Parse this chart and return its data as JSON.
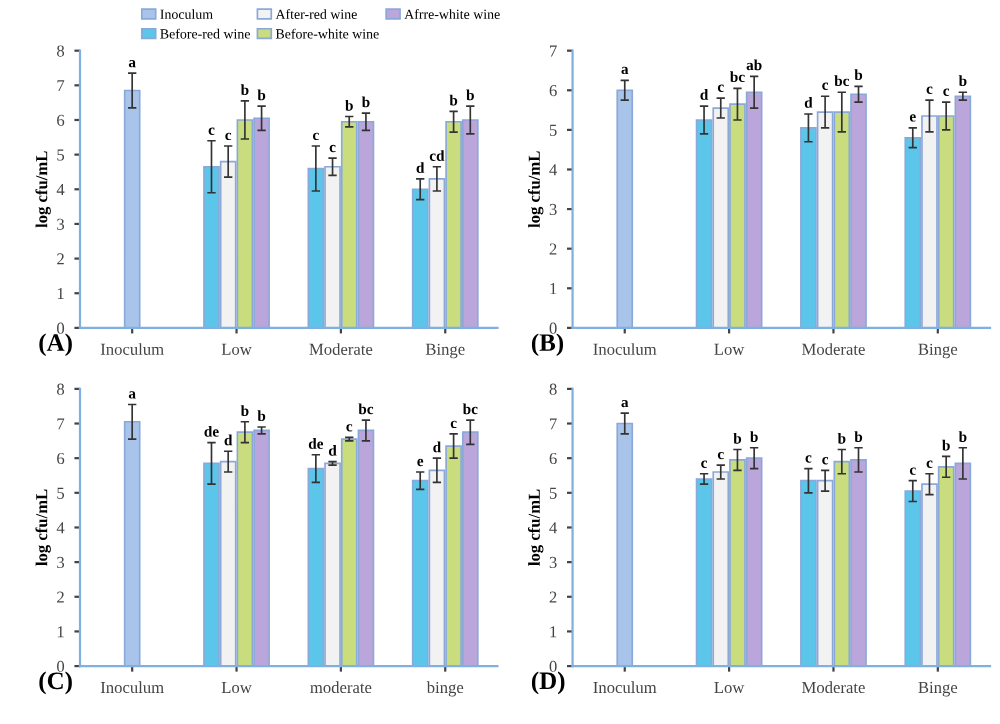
{
  "chart_data": [
    {
      "type": "bar",
      "title": "(A)",
      "ylabel": "log cfu/mL",
      "categories": [
        "Inoculum",
        "Low",
        "Moderate",
        "Binge"
      ],
      "ylim": [
        0,
        8
      ],
      "yticks": [
        0,
        1,
        2,
        3,
        4,
        5,
        6,
        7,
        8
      ],
      "legend": "top right",
      "grid": false,
      "series": [
        {
          "name": "Inoculum",
          "color": "#a9c4ea",
          "values": [
            6.85,
            null,
            null,
            null
          ],
          "errors": [
            0.5,
            null,
            null,
            null
          ],
          "value_labels": [
            "a",
            null,
            null,
            null
          ]
        },
        {
          "name": "Before-red wine",
          "color": "#5cc6ea",
          "values": [
            null,
            4.65,
            4.6,
            4.0
          ],
          "errors": [
            null,
            0.75,
            0.65,
            0.3
          ],
          "value_labels": [
            null,
            "c",
            "c",
            "d"
          ]
        },
        {
          "name": "After-red wine",
          "color": "#f2f2f2",
          "values": [
            null,
            4.8,
            4.65,
            4.3
          ],
          "errors": [
            null,
            0.45,
            0.25,
            0.35
          ],
          "value_labels": [
            null,
            "c",
            "c",
            "cd"
          ]
        },
        {
          "name": "Before-white wine",
          "color": "#c9dc7e",
          "values": [
            null,
            6.0,
            5.95,
            5.95
          ],
          "errors": [
            null,
            0.55,
            0.15,
            0.3
          ],
          "value_labels": [
            null,
            "b",
            "b",
            "b"
          ]
        },
        {
          "name": "Afrre-white wine",
          "color": "#baa6da",
          "values": [
            null,
            6.05,
            5.95,
            6.0
          ],
          "errors": [
            null,
            0.35,
            0.25,
            0.4
          ],
          "value_labels": [
            null,
            "b",
            "b",
            "b"
          ]
        }
      ]
    },
    {
      "type": "bar",
      "title": "(B)",
      "ylabel": "log cfu/mL",
      "categories": [
        "Inoculum",
        "Low",
        "Moderate",
        "Binge"
      ],
      "ylim": [
        0,
        7
      ],
      "yticks": [
        0,
        1,
        2,
        3,
        4,
        5,
        6,
        7
      ],
      "grid": false,
      "series": [
        {
          "color": "#a9c4ea",
          "values": [
            6.0,
            null,
            null,
            null
          ],
          "errors": [
            0.25,
            null,
            null,
            null
          ],
          "value_labels": [
            "a",
            null,
            null,
            null
          ]
        },
        {
          "color": "#5cc6ea",
          "values": [
            null,
            5.25,
            5.05,
            4.8
          ],
          "errors": [
            null,
            0.35,
            0.35,
            0.25
          ],
          "value_labels": [
            null,
            "d",
            "d",
            "e"
          ]
        },
        {
          "color": "#f2f2f2",
          "values": [
            null,
            5.55,
            5.45,
            5.35
          ],
          "errors": [
            null,
            0.25,
            0.4,
            0.4
          ],
          "value_labels": [
            null,
            "c",
            "c",
            "c"
          ]
        },
        {
          "color": "#c9dc7e",
          "values": [
            null,
            5.65,
            5.45,
            5.35
          ],
          "errors": [
            null,
            0.4,
            0.5,
            0.35
          ],
          "value_labels": [
            null,
            "bc",
            "bc",
            "c"
          ]
        },
        {
          "color": "#baa6da",
          "values": [
            null,
            5.95,
            5.9,
            5.85
          ],
          "errors": [
            null,
            0.4,
            0.2,
            0.1
          ],
          "value_labels": [
            null,
            "ab",
            "b",
            "b"
          ]
        }
      ]
    },
    {
      "type": "bar",
      "title": "(C)",
      "ylabel": "log cfu/mL",
      "categories": [
        "Inoculum",
        "Low",
        "moderate",
        "binge"
      ],
      "ylim": [
        0,
        8
      ],
      "yticks": [
        0,
        1,
        2,
        3,
        4,
        5,
        6,
        7,
        8
      ],
      "grid": false,
      "series": [
        {
          "color": "#a9c4ea",
          "values": [
            7.05,
            null,
            null,
            null
          ],
          "errors": [
            0.5,
            null,
            null,
            null
          ],
          "value_labels": [
            "a",
            null,
            null,
            null
          ]
        },
        {
          "color": "#5cc6ea",
          "values": [
            null,
            5.85,
            5.7,
            5.35
          ],
          "errors": [
            null,
            0.6,
            0.4,
            0.25
          ],
          "value_labels": [
            null,
            "de",
            "de",
            "e"
          ]
        },
        {
          "color": "#f2f2f2",
          "values": [
            null,
            5.9,
            5.85,
            5.65
          ],
          "errors": [
            null,
            0.3,
            0.05,
            0.35
          ],
          "value_labels": [
            null,
            "d",
            "d",
            "d"
          ]
        },
        {
          "color": "#c9dc7e",
          "values": [
            null,
            6.75,
            6.55,
            6.35
          ],
          "errors": [
            null,
            0.3,
            0.05,
            0.35
          ],
          "value_labels": [
            null,
            "b",
            "c",
            "c"
          ]
        },
        {
          "color": "#baa6da",
          "values": [
            null,
            6.8,
            6.8,
            6.75
          ],
          "errors": [
            null,
            0.1,
            0.3,
            0.35
          ],
          "value_labels": [
            null,
            "b",
            "bc",
            "bc"
          ]
        }
      ]
    },
    {
      "type": "bar",
      "title": "(D)",
      "ylabel": "log cfu/mL",
      "categories": [
        "Inoculum",
        "Low",
        "Moderate",
        "Binge"
      ],
      "ylim": [
        0,
        8
      ],
      "yticks": [
        0,
        1,
        2,
        3,
        4,
        5,
        6,
        7,
        8
      ],
      "grid": false,
      "series": [
        {
          "color": "#a9c4ea",
          "values": [
            7.0,
            null,
            null,
            null
          ],
          "errors": [
            0.3,
            null,
            null,
            null
          ],
          "value_labels": [
            "a",
            null,
            null,
            null
          ]
        },
        {
          "color": "#5cc6ea",
          "values": [
            null,
            5.4,
            5.35,
            5.05
          ],
          "errors": [
            null,
            0.15,
            0.35,
            0.3
          ],
          "value_labels": [
            null,
            "c",
            "c",
            "c"
          ]
        },
        {
          "color": "#f2f2f2",
          "values": [
            null,
            5.6,
            5.35,
            5.25
          ],
          "errors": [
            null,
            0.2,
            0.3,
            0.3
          ],
          "value_labels": [
            null,
            "c",
            "c",
            "c"
          ]
        },
        {
          "color": "#c9dc7e",
          "values": [
            null,
            5.95,
            5.9,
            5.75
          ],
          "errors": [
            null,
            0.3,
            0.35,
            0.3
          ],
          "value_labels": [
            null,
            "b",
            "b",
            "b"
          ]
        },
        {
          "color": "#baa6da",
          "values": [
            null,
            6.0,
            5.95,
            5.85
          ],
          "errors": [
            null,
            0.3,
            0.35,
            0.45
          ],
          "value_labels": [
            null,
            "b",
            "b",
            "b"
          ]
        }
      ]
    }
  ]
}
